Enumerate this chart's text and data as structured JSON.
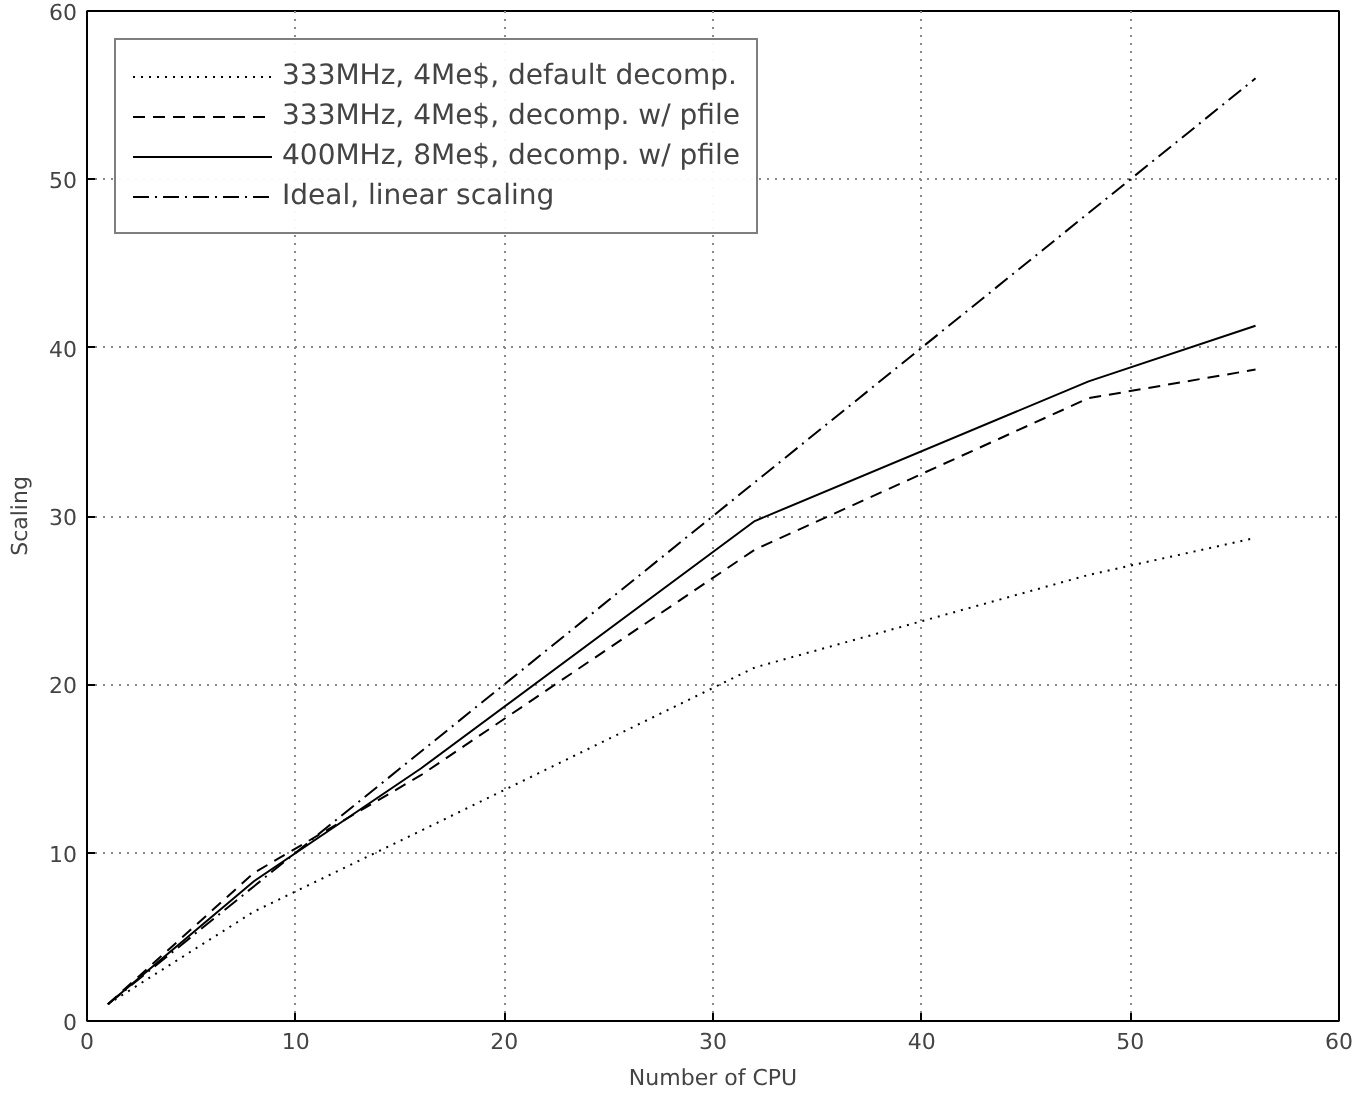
{
  "chart_data": {
    "type": "line",
    "xlabel": "Number of CPU",
    "ylabel": "Scaling",
    "xlim": [
      0,
      60
    ],
    "ylim": [
      0,
      60
    ],
    "xticks": [
      0,
      10,
      20,
      30,
      40,
      50,
      60
    ],
    "yticks": [
      0,
      10,
      20,
      30,
      40,
      50,
      60
    ],
    "grid": true,
    "legend": "top left",
    "marker": "none",
    "series": [
      {
        "name": "333MHz, 4Me$, default decomp.",
        "color": "#000000",
        "line_style": "dotted",
        "x": [
          1,
          8,
          16,
          32,
          48,
          56
        ],
        "values": [
          1,
          6.5,
          11.3,
          21,
          26.5,
          28.7
        ]
      },
      {
        "name": "333MHz, 4Me$, decomp. w/ pfile",
        "color": "#000000",
        "line_style": "dashed",
        "x": [
          1,
          8,
          16,
          32,
          48,
          56
        ],
        "values": [
          1,
          8.8,
          14.6,
          28,
          37,
          38.7
        ]
      },
      {
        "name": "400MHz, 8Me$, decomp. w/ pfile",
        "color": "#000000",
        "line_style": "solid",
        "x": [
          1,
          8,
          16,
          32,
          48,
          56
        ],
        "values": [
          1,
          8.3,
          15,
          29.7,
          38,
          41.3
        ]
      },
      {
        "name": "Ideal, linear scaling",
        "color": "#000000",
        "line_style": "dashdot",
        "x": [
          1,
          56
        ],
        "values": [
          1,
          56
        ]
      }
    ]
  }
}
